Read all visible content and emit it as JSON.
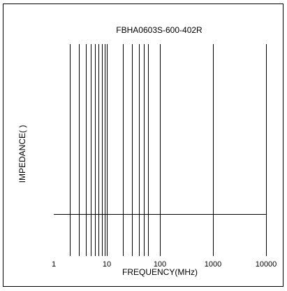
{
  "chart_data": {
    "type": "line",
    "title": "FBHA0603S-600-402R",
    "xlabel": "FREQUENCY(MHz)",
    "ylabel": "IMPEDANCE(  )",
    "x_scale": "log",
    "xlim": [
      1,
      10000
    ],
    "x_ticks": [
      1,
      10,
      100,
      1000,
      10000
    ],
    "x_tick_labels": [
      "1",
      "10",
      "100",
      "1000",
      "10000"
    ],
    "x_gridlines": [
      2,
      3,
      4,
      5,
      6,
      7,
      8,
      9,
      10,
      20,
      30,
      40,
      50,
      60,
      100,
      1000,
      10000
    ],
    "y_tick_labels": [],
    "horizontal_reference_line": true,
    "grid": "vertical",
    "series": []
  }
}
